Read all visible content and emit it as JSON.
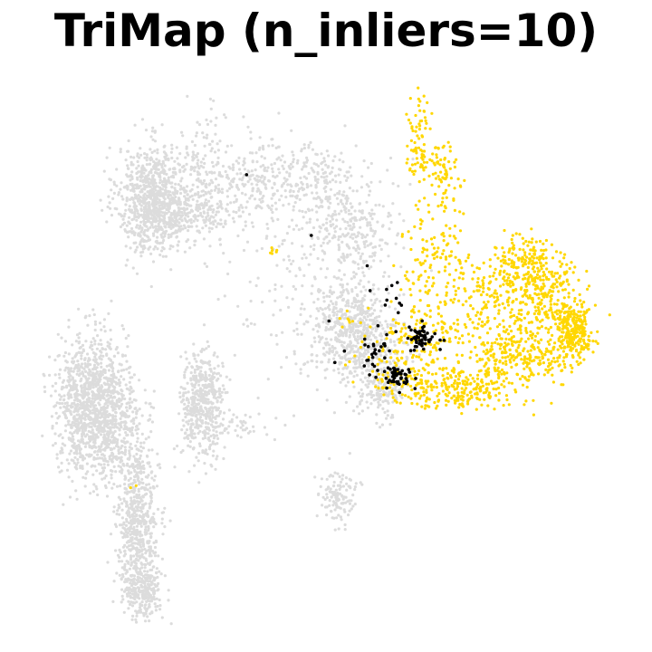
{
  "chart_data": {
    "type": "scatter",
    "title": "TriMap (n_inliers=10)",
    "xlabel": "",
    "ylabel": "",
    "axes_visible": false,
    "grid": false,
    "legend": "none",
    "xlim": [
      0,
      100
    ],
    "ylim": [
      0,
      100
    ],
    "series": [
      {
        "color": "#dcdcdc",
        "clusters": [
          {
            "cx": 21,
            "cy": 77,
            "sx": 3.2,
            "sy": 4.8,
            "n": 900
          },
          {
            "cx": 29,
            "cy": 81,
            "sx": 2.0,
            "sy": 6.0,
            "n": 120
          },
          {
            "cx": 28,
            "cy": 74,
            "sx": 4.0,
            "sy": 2.0,
            "n": 150
          },
          {
            "cx": 38,
            "cy": 81,
            "sx": 6.0,
            "sy": 3.5,
            "n": 260
          },
          {
            "cx": 49,
            "cy": 78,
            "sx": 5.0,
            "sy": 4.5,
            "n": 220
          },
          {
            "cx": 55,
            "cy": 71,
            "sx": 3.5,
            "sy": 5.0,
            "n": 180
          },
          {
            "cx": 53,
            "cy": 53,
            "sx": 3.2,
            "sy": 4.5,
            "n": 400
          },
          {
            "cx": 58,
            "cy": 51,
            "sx": 2.5,
            "sy": 5.0,
            "n": 260
          },
          {
            "cx": 60,
            "cy": 43,
            "sx": 2.0,
            "sy": 3.0,
            "n": 150
          },
          {
            "cx": 10,
            "cy": 40,
            "sx": 2.8,
            "sy": 6.2,
            "n": 1100
          },
          {
            "cx": 15,
            "cy": 37,
            "sx": 2.5,
            "sy": 5.0,
            "n": 250
          },
          {
            "cx": 18,
            "cy": 18,
            "sx": 1.8,
            "sy": 8.0,
            "n": 650
          },
          {
            "cx": 19,
            "cy": 6,
            "sx": 1.5,
            "sy": 2.2,
            "n": 200
          },
          {
            "cx": 29,
            "cy": 40,
            "sx": 1.8,
            "sy": 4.8,
            "n": 500
          },
          {
            "cx": 52,
            "cy": 23,
            "sx": 1.6,
            "sy": 2.6,
            "n": 120
          },
          {
            "cx": 36,
            "cy": 36,
            "sx": 3.5,
            "sy": 1.5,
            "n": 40
          },
          {
            "cx": 45,
            "cy": 62,
            "sx": 8.0,
            "sy": 8.0,
            "n": 150
          }
        ]
      },
      {
        "color": "#ffd700",
        "clusters": [
          {
            "cx": 92,
            "cy": 53,
            "sx": 1.6,
            "sy": 2.2,
            "n": 250
          },
          {
            "cx": 84,
            "cy": 65,
            "sx": 3.5,
            "sy": 2.8,
            "n": 200
          },
          {
            "cx": 88,
            "cy": 59,
            "sx": 2.8,
            "sy": 3.5,
            "n": 150
          },
          {
            "cx": 80,
            "cy": 56,
            "sx": 5.0,
            "sy": 4.0,
            "n": 180
          },
          {
            "cx": 84,
            "cy": 48,
            "sx": 5.0,
            "sy": 1.8,
            "n": 220
          },
          {
            "cx": 72,
            "cy": 43,
            "sx": 6.0,
            "sy": 1.8,
            "n": 250
          },
          {
            "cx": 71,
            "cy": 58,
            "sx": 5.0,
            "sy": 4.5,
            "n": 150
          },
          {
            "cx": 64,
            "cy": 49,
            "sx": 4.0,
            "sy": 4.0,
            "n": 150
          },
          {
            "cx": 68,
            "cy": 68,
            "sx": 2.5,
            "sy": 3.0,
            "n": 60
          },
          {
            "cx": 66,
            "cy": 86,
            "sx": 1.2,
            "sy": 4.5,
            "n": 90
          },
          {
            "cx": 70,
            "cy": 83,
            "sx": 1.0,
            "sy": 2.5,
            "n": 50
          },
          {
            "cx": 71,
            "cy": 76,
            "sx": 1.2,
            "sy": 3.5,
            "n": 25
          },
          {
            "cx": 41,
            "cy": 68,
            "sx": 0.3,
            "sy": 0.5,
            "n": 6
          },
          {
            "cx": 53,
            "cy": 55,
            "sx": 1.5,
            "sy": 1.5,
            "n": 6
          },
          {
            "cx": 17,
            "cy": 25,
            "sx": 0.3,
            "sy": 0.3,
            "n": 2
          }
        ]
      },
      {
        "color": "#000000",
        "clusters": [
          {
            "cx": 66,
            "cy": 52,
            "sx": 1.5,
            "sy": 1.2,
            "n": 55
          },
          {
            "cx": 62,
            "cy": 45,
            "sx": 1.6,
            "sy": 1.0,
            "n": 50
          },
          {
            "cx": 58,
            "cy": 49,
            "sx": 1.6,
            "sy": 1.8,
            "n": 25
          },
          {
            "cx": 61,
            "cy": 59,
            "sx": 1.2,
            "sy": 1.5,
            "n": 10
          }
        ],
        "points": [
          [
            47.5,
            70.5
          ],
          [
            36.5,
            81.5
          ],
          [
            57,
            65
          ],
          [
            57.5,
            60.5
          ],
          [
            50.5,
            55
          ],
          [
            51.5,
            47.5
          ]
        ]
      }
    ]
  }
}
